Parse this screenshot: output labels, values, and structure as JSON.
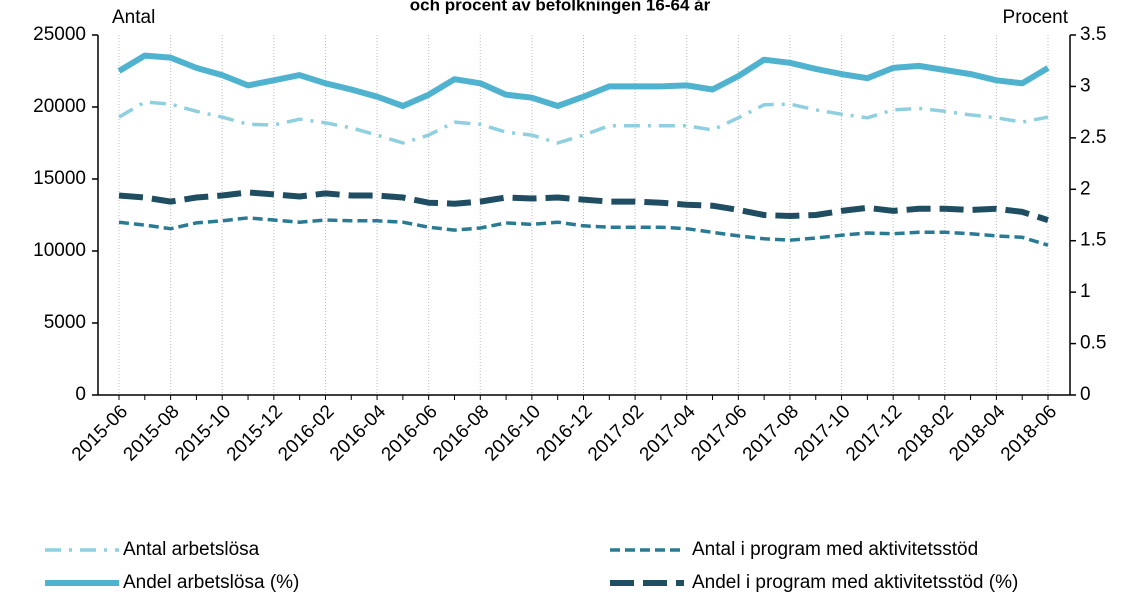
{
  "chart_data": {
    "type": "line",
    "title": "och procent av befolkningen 16-64 år",
    "ylabel": "Antal",
    "y2label": "Procent",
    "categories": [
      "2015-06",
      null,
      "2015-08",
      null,
      "2015-10",
      null,
      "2015-12",
      null,
      "2016-02",
      null,
      "2016-04",
      null,
      "2016-06",
      null,
      "2016-08",
      null,
      "2016-10",
      null,
      "2016-12",
      null,
      "2017-02",
      null,
      "2017-04",
      null,
      "2017-06",
      null,
      "2017-08",
      null,
      "2017-10",
      null,
      "2017-12",
      null,
      "2018-02",
      null,
      "2018-04",
      null,
      "2018-06"
    ],
    "ylim": [
      0,
      25000
    ],
    "yticks": [
      0,
      5000,
      10000,
      15000,
      20000,
      25000
    ],
    "y2lim": [
      0,
      3.5
    ],
    "y2ticks": [
      0,
      0.5,
      1,
      1.5,
      2,
      2.5,
      3,
      3.5
    ],
    "xgrid": true,
    "legend": "bottom",
    "series": [
      {
        "name": "Antal arbetslösa",
        "color": "#8ecfe0",
        "dash": "16 8 3 8",
        "width": 3.5,
        "values": [
          19300,
          20350,
          20200,
          19700,
          19300,
          18800,
          18750,
          19150,
          18900,
          18550,
          18050,
          17500,
          18050,
          18950,
          18800,
          18250,
          18050,
          17500,
          18050,
          18700,
          18700,
          18700,
          18700,
          18400,
          19250,
          20150,
          20200,
          19800,
          19500,
          19250,
          19800,
          19900,
          19700,
          19450,
          19250,
          18950,
          19300
        ]
      },
      {
        "name": "Antal i program med aktivitetsstöd",
        "color": "#2a7a93",
        "dash": "10 5",
        "width": 3.5,
        "values": [
          12000,
          11800,
          11550,
          11950,
          12100,
          12300,
          12150,
          12000,
          12150,
          12100,
          12100,
          12000,
          11650,
          11450,
          11600,
          11950,
          11850,
          12000,
          11750,
          11650,
          11650,
          11650,
          11550,
          11300,
          11050,
          10850,
          10750,
          10900,
          11100,
          11250,
          11200,
          11300,
          11300,
          11200,
          11050,
          10950,
          10400
        ]
      },
      {
        "name": "Andel arbetslösa (%)",
        "color": "#4fb3cf",
        "dash": "none",
        "width": 6,
        "axis": "y2",
        "values": [
          3.15,
          3.3,
          3.28,
          3.18,
          3.11,
          3.01,
          3.06,
          3.11,
          3.03,
          2.97,
          2.9,
          2.81,
          2.92,
          3.07,
          3.03,
          2.92,
          2.89,
          2.81,
          2.9,
          3.0,
          3.0,
          3.0,
          3.01,
          2.97,
          3.1,
          3.26,
          3.23,
          3.17,
          3.12,
          3.08,
          3.18,
          3.2,
          3.16,
          3.12,
          3.06,
          3.03,
          3.18
        ]
      },
      {
        "name": "Andel i program med aktivitetsstöd (%)",
        "color": "#1f4e62",
        "dash": "24 9",
        "width": 6,
        "axis": "y2",
        "values": [
          1.94,
          1.92,
          1.88,
          1.92,
          1.94,
          1.97,
          1.95,
          1.93,
          1.96,
          1.94,
          1.94,
          1.92,
          1.87,
          1.86,
          1.88,
          1.92,
          1.91,
          1.92,
          1.9,
          1.88,
          1.88,
          1.87,
          1.85,
          1.84,
          1.8,
          1.75,
          1.74,
          1.75,
          1.79,
          1.82,
          1.79,
          1.81,
          1.81,
          1.8,
          1.81,
          1.78,
          1.7
        ]
      }
    ]
  }
}
